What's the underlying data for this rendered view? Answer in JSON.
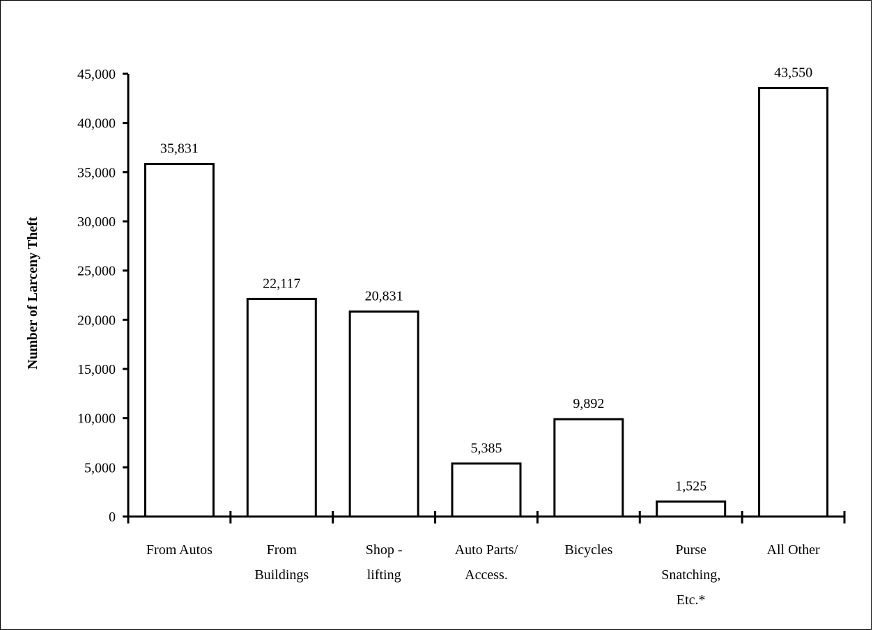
{
  "chart_data": {
    "type": "bar",
    "title": "",
    "xlabel": "",
    "ylabel": "Number of Larceny Theft",
    "ylim": [
      0,
      45000
    ],
    "yticks": [
      0,
      5000,
      10000,
      15000,
      20000,
      25000,
      30000,
      35000,
      40000,
      45000
    ],
    "ytick_labels": [
      "0",
      "5,000",
      "10,000",
      "15,000",
      "20,000",
      "25,000",
      "30,000",
      "35,000",
      "40,000",
      "45,000"
    ],
    "categories": [
      [
        "From Autos"
      ],
      [
        "From",
        "Buildings"
      ],
      [
        "Shop -",
        "lifting"
      ],
      [
        "Auto Parts/",
        "Access."
      ],
      [
        "Bicycles"
      ],
      [
        "Purse",
        "Snatching,",
        "Etc.*"
      ],
      [
        "All Other"
      ]
    ],
    "values": [
      35831,
      22117,
      20831,
      5385,
      9892,
      1525,
      43550
    ],
    "value_labels": [
      "35,831",
      "22,117",
      "20,831",
      "5,385",
      "9,892",
      "1,525",
      "43,550"
    ],
    "bar_fill": "#ffffff",
    "bar_stroke": "#000000",
    "grid": false,
    "legend": "none"
  }
}
